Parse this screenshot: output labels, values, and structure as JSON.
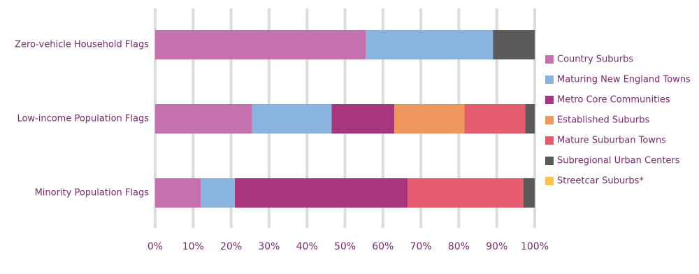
{
  "chart_data": {
    "type": "stacked-barh",
    "categories": [
      "Zero-vehicle Household Flags",
      "Low-income Population Flags",
      "Minority Population Flags"
    ],
    "series": [
      {
        "name": "Country Suburbs",
        "color": "#c471ae",
        "values": [
          55.5,
          25.5,
          12
        ]
      },
      {
        "name": "Maturing New England Towns",
        "color": "#8ab4e0",
        "values": [
          33.5,
          21,
          9
        ]
      },
      {
        "name": "Metro Core Communities",
        "color": "#a8367f",
        "values": [
          0,
          16.5,
          45.5
        ]
      },
      {
        "name": "Established Suburbs",
        "color": "#ef965e",
        "values": [
          0,
          18.5,
          0
        ]
      },
      {
        "name": "Mature Suburban Towns",
        "color": "#e45c6e",
        "values": [
          0,
          16,
          30.5
        ]
      },
      {
        "name": "Subregional Urban Centers",
        "color": "#5a5a5a",
        "values": [
          11,
          2.5,
          3
        ]
      },
      {
        "name": "Streetcar Suburbs*",
        "color": "#fcc14a",
        "values": [
          0,
          0,
          0
        ]
      }
    ],
    "xlim": [
      0,
      100
    ],
    "xticks": [
      {
        "value": 0,
        "label": "0%"
      },
      {
        "value": 10,
        "label": "10%"
      },
      {
        "value": 20,
        "label": "20%"
      },
      {
        "value": 30,
        "label": "30%"
      },
      {
        "value": 40,
        "label": "40%"
      },
      {
        "value": 50,
        "label": "50%"
      },
      {
        "value": 60,
        "label": "60%"
      },
      {
        "value": 70,
        "label": "70%"
      },
      {
        "value": 80,
        "label": "80%"
      },
      {
        "value": 90,
        "label": "90%"
      },
      {
        "value": 100,
        "label": "100%"
      }
    ],
    "grid": true,
    "legend": "right"
  }
}
